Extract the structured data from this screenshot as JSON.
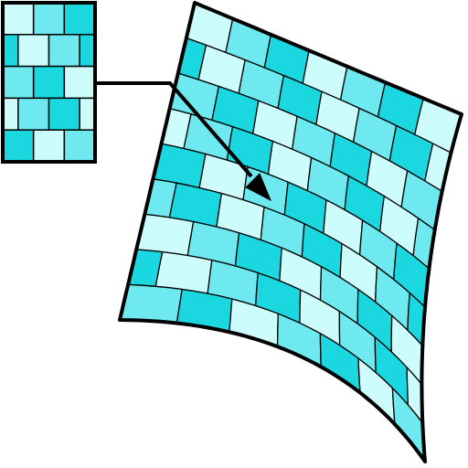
{
  "diagram": {
    "kind": "texture-mapping",
    "source_texture": {
      "rows": 5,
      "cols": 3,
      "pattern": "brick-offset"
    },
    "target_surface": {
      "rows": 9,
      "cols": 7,
      "pattern": "brick-offset",
      "warp": "curved-sheet"
    },
    "connector": "arrow-from-texture-to-surface",
    "colors": {
      "light": "#ccfcfc",
      "medium": "#6ee9ef",
      "dark": "#1ad7e0",
      "stroke": "#000000",
      "background": "#ffffff"
    }
  }
}
